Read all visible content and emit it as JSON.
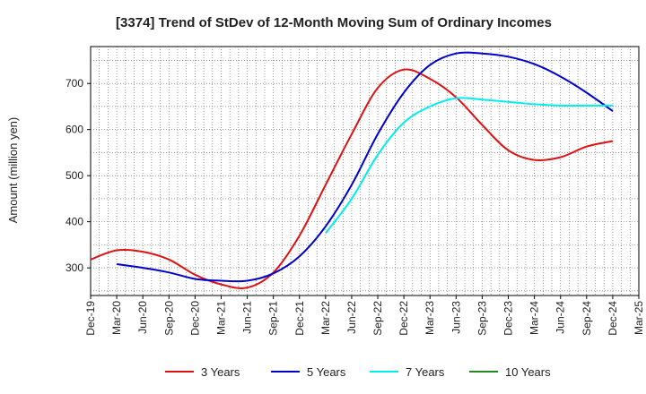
{
  "chart_data": {
    "type": "line",
    "title": "[3374]  Trend of StDev of 12-Month Moving Sum of Ordinary Incomes",
    "xlabel": "",
    "ylabel": "Amount (million yen)",
    "ylim": [
      240,
      780
    ],
    "yticks": [
      300,
      400,
      500,
      600,
      700
    ],
    "grid": true,
    "legend_position": "bottom",
    "categories": [
      "Dec-19",
      "Mar-20",
      "Jun-20",
      "Sep-20",
      "Dec-20",
      "Mar-21",
      "Jun-21",
      "Sep-21",
      "Dec-21",
      "Mar-22",
      "Jun-22",
      "Sep-22",
      "Dec-22",
      "Mar-23",
      "Jun-23",
      "Sep-23",
      "Dec-23",
      "Mar-24",
      "Jun-24",
      "Sep-24",
      "Dec-24",
      "Mar-25"
    ],
    "series": [
      {
        "name": "3 Years",
        "color": "#dd1111",
        "values": [
          318,
          338,
          335,
          318,
          285,
          264,
          257,
          290,
          370,
          480,
          590,
          690,
          730,
          710,
          670,
          610,
          555,
          534,
          540,
          563,
          575,
          null
        ]
      },
      {
        "name": "5 Years",
        "color": "#0000cc",
        "values": [
          null,
          308,
          300,
          290,
          276,
          272,
          272,
          288,
          325,
          390,
          480,
          590,
          680,
          740,
          765,
          765,
          758,
          742,
          715,
          680,
          640,
          null
        ]
      },
      {
        "name": "7 Years",
        "color": "#00eeee",
        "values": [
          null,
          null,
          null,
          null,
          null,
          null,
          null,
          null,
          null,
          375,
          450,
          545,
          615,
          650,
          668,
          665,
          660,
          655,
          652,
          652,
          652,
          null
        ]
      },
      {
        "name": "10 Years",
        "color": "#228822",
        "values": [
          null,
          null,
          null,
          null,
          null,
          null,
          null,
          null,
          null,
          null,
          null,
          null,
          null,
          null,
          null,
          null,
          null,
          null,
          null,
          null,
          null,
          null
        ]
      }
    ]
  }
}
